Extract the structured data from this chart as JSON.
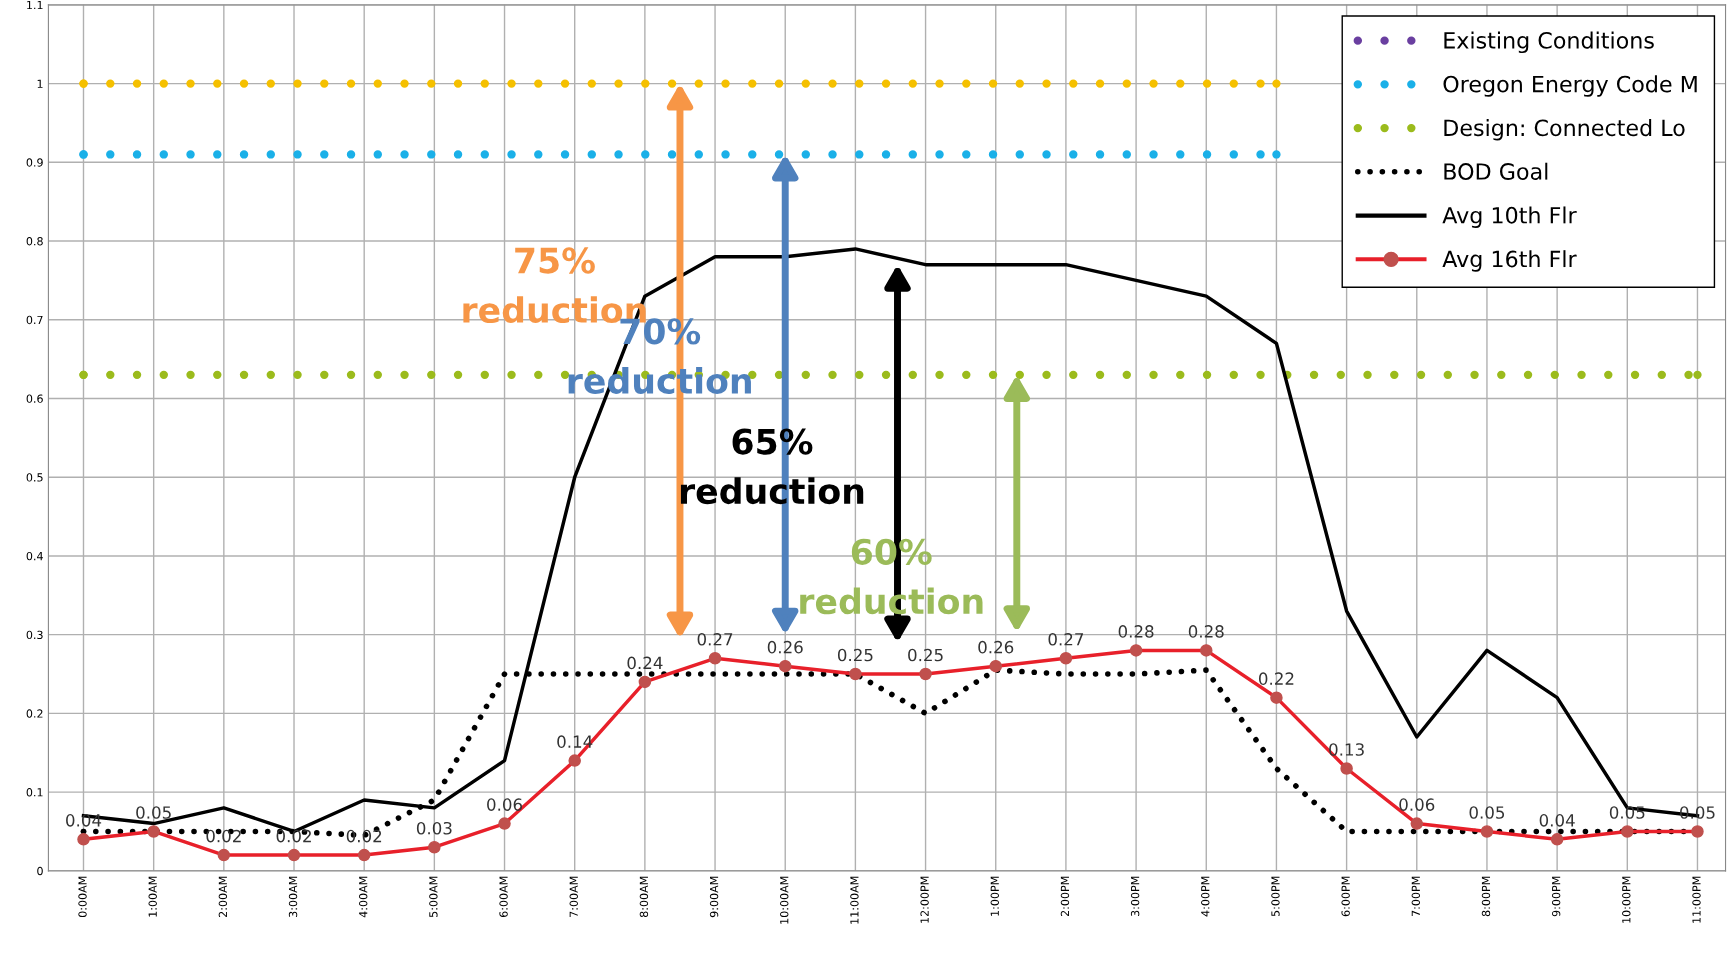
{
  "chart_data": {
    "type": "line",
    "x": [
      0,
      1,
      2,
      3,
      4,
      5,
      6,
      7,
      8,
      9,
      10,
      11,
      12,
      13,
      14,
      15,
      16,
      17,
      18,
      19,
      20,
      21,
      22,
      23
    ],
    "xlim": [
      -0.5,
      23.4
    ],
    "xticks": [
      {
        "value": 0,
        "label": "0:00AM"
      },
      {
        "value": 1,
        "label": "1:00AM"
      },
      {
        "value": 2,
        "label": "2:00AM"
      },
      {
        "value": 3,
        "label": "3:00AM"
      },
      {
        "value": 4,
        "label": "4:00AM"
      },
      {
        "value": 5,
        "label": "5:00AM"
      },
      {
        "value": 6,
        "label": "6:00AM"
      },
      {
        "value": 7,
        "label": "7:00AM"
      },
      {
        "value": 8,
        "label": "8:00AM"
      },
      {
        "value": 9,
        "label": "9:00AM"
      },
      {
        "value": 10,
        "label": "10:00AM"
      },
      {
        "value": 11,
        "label": "11:00AM"
      },
      {
        "value": 12,
        "label": "12:00PM"
      },
      {
        "value": 13,
        "label": "1:00PM"
      },
      {
        "value": 14,
        "label": "2:00PM"
      },
      {
        "value": 15,
        "label": "3:00PM"
      },
      {
        "value": 16,
        "label": "4:00PM"
      },
      {
        "value": 17,
        "label": "5:00PM"
      },
      {
        "value": 18,
        "label": "6:00PM"
      },
      {
        "value": 19,
        "label": "7:00PM"
      },
      {
        "value": 20,
        "label": "8:00PM"
      },
      {
        "value": 21,
        "label": "9:00PM"
      },
      {
        "value": 22,
        "label": "10:00PM"
      },
      {
        "value": 23,
        "label": "11:00PM"
      }
    ],
    "ylim": [
      0,
      1.1
    ],
    "yticks": [
      0,
      0.1,
      0.2,
      0.3,
      0.4,
      0.5,
      0.6,
      0.7,
      0.8,
      0.9,
      1,
      1.1
    ],
    "grid": true,
    "legend": "top right",
    "series": [
      {
        "color": "#f5c000",
        "line_style": "dotted",
        "values": [
          1,
          1,
          1,
          1,
          1,
          1,
          1,
          1,
          1,
          1,
          1,
          1,
          1,
          1,
          1,
          1,
          1,
          1,
          null,
          null,
          null,
          null,
          null,
          null
        ]
      },
      {
        "name": "Existing Conditions",
        "color": "#6a3fa0",
        "line_style": "dotted",
        "values": [
          null,
          null,
          null,
          null,
          null,
          null,
          null,
          null,
          null,
          null,
          null,
          null,
          null,
          null,
          null,
          null,
          null,
          null,
          null,
          null,
          null,
          null,
          null,
          null
        ]
      },
      {
        "name": "Oregon Energy Code M",
        "color": "#1ab0e8",
        "line_style": "dotted",
        "values": [
          0.91,
          0.91,
          0.91,
          0.91,
          0.91,
          0.91,
          0.91,
          0.91,
          0.91,
          0.91,
          0.91,
          0.91,
          0.91,
          0.91,
          0.91,
          0.91,
          0.91,
          0.91,
          null,
          null,
          null,
          null,
          null,
          null
        ]
      },
      {
        "name": "Design: Connected Lo",
        "color": "#9bbb1c",
        "line_style": "dotted",
        "values": [
          0.63,
          0.63,
          0.63,
          0.63,
          0.63,
          0.63,
          0.63,
          0.63,
          0.63,
          0.63,
          0.63,
          0.63,
          0.63,
          0.63,
          0.63,
          0.63,
          0.63,
          0.63,
          0.63,
          0.63,
          0.63,
          0.63,
          0.63,
          0.63
        ]
      },
      {
        "name": "BOD Goal",
        "color": "#000000",
        "line_style": "dotted",
        "values": [
          0.05,
          0.05,
          0.05,
          0.05,
          0.045,
          0.09,
          0.25,
          0.25,
          0.25,
          0.25,
          0.25,
          0.25,
          0.2,
          0.255,
          0.25,
          0.25,
          0.255,
          0.13,
          0.05,
          0.05,
          0.05,
          0.05,
          0.05,
          0.05
        ]
      },
      {
        "name": "Avg 10th Flr",
        "color": "#000000",
        "line_style": "solid",
        "values": [
          0.07,
          0.06,
          0.08,
          0.05,
          0.09,
          0.08,
          0.14,
          0.5,
          0.73,
          0.78,
          0.78,
          0.79,
          0.77,
          0.77,
          0.77,
          0.75,
          0.73,
          0.67,
          0.33,
          0.17,
          0.28,
          0.22,
          0.08,
          0.07
        ]
      },
      {
        "name": "Avg 16th Flr",
        "color": "#e8202a",
        "line_style": "solid",
        "marker": "circle",
        "data_labels": true,
        "values": [
          0.04,
          0.05,
          0.02,
          0.02,
          0.02,
          0.03,
          0.06,
          0.14,
          0.24,
          0.27,
          0.26,
          0.25,
          0.25,
          0.26,
          0.27,
          0.28,
          0.28,
          0.22,
          0.13,
          0.06,
          0.05,
          0.04,
          0.05,
          0.05
        ]
      }
    ],
    "annotations": [
      "75%\nreduction",
      "70%\nreduction",
      "65%\nreduction",
      "60%\nreduction"
    ]
  }
}
